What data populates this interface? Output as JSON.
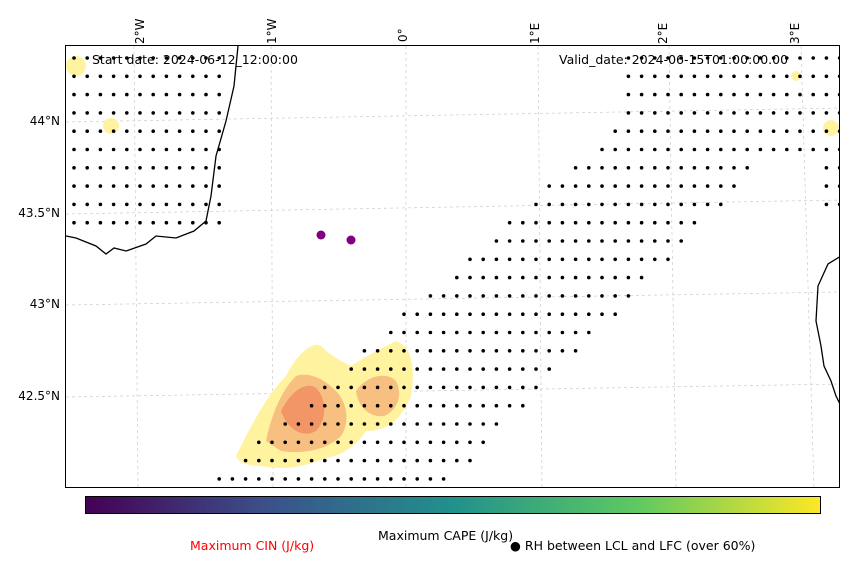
{
  "header": {
    "start_date": "Start date: 2024-06-12_12:00:00",
    "valid_date": "Valid_date: 2024-06-15T01:00:00.00"
  },
  "axes": {
    "lon_ticks": [
      "2°W",
      "1°W",
      "0°",
      "1°E",
      "2°E",
      "3°E"
    ],
    "lat_ticks": [
      "44°N",
      "43.5°N",
      "43°N",
      "42.5°N"
    ]
  },
  "colorbar": {
    "label": "Maximum CAPE (J/kg)",
    "colormap": "viridis",
    "colors": [
      "#440154",
      "#3b528b",
      "#21918c",
      "#5ec962",
      "#fde725"
    ]
  },
  "legend": {
    "cin_label": "Maximum CIN (J/kg)",
    "cin_color": "#ff0000",
    "rh_marker": "●",
    "rh_label": "RH between LCL and LFC (over 60%)"
  },
  "overlay_colors": {
    "coastline": "#000000",
    "cape_low": "#fff3a0",
    "cape_mid": "#f7c080",
    "cape_high": "#f08a60",
    "station": "#800080",
    "grid": "#cccccc"
  }
}
